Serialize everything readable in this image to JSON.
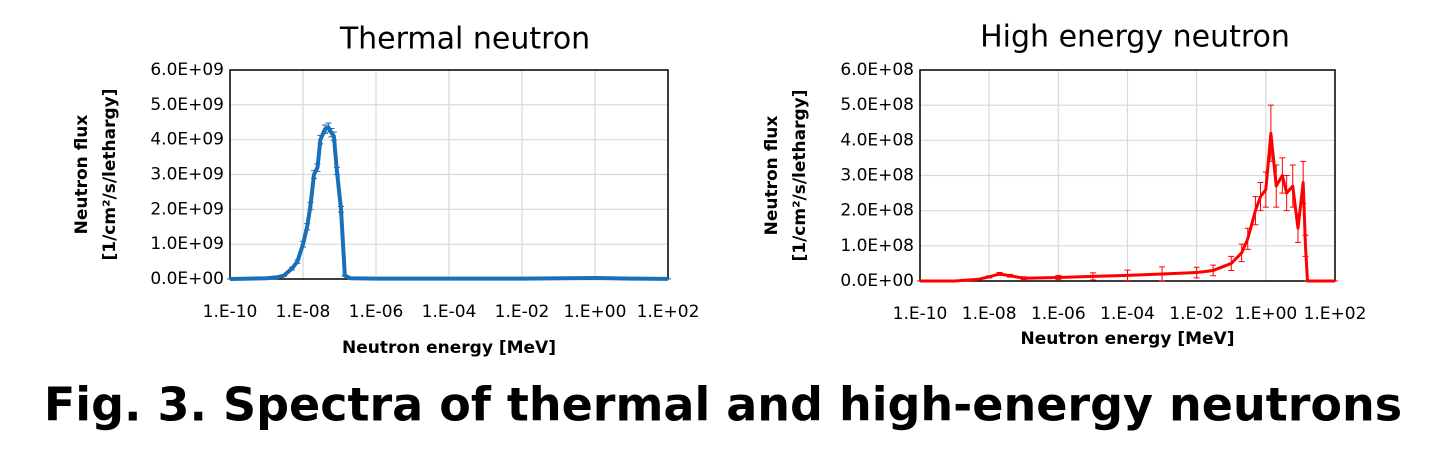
{
  "chart_data": [
    {
      "type": "line",
      "title": "Thermal neutron",
      "xlabel": "Neutron energy [MeV]",
      "ylabel": [
        "Neutron flux",
        "[1/cm²/s/lethargy]"
      ],
      "xscale": "log",
      "grid": true,
      "xlim": [
        1e-10,
        100
      ],
      "xticks": [
        {
          "value": 1e-10,
          "label": "1.E-10"
        },
        {
          "value": 1e-08,
          "label": "1.E-08"
        },
        {
          "value": 1e-06,
          "label": "1.E-06"
        },
        {
          "value": 0.0001,
          "label": "1.E-04"
        },
        {
          "value": 0.01,
          "label": "1.E-02"
        },
        {
          "value": 1,
          "label": "1.E+00"
        },
        {
          "value": 100,
          "label": "1.E+02"
        }
      ],
      "ylim": [
        0,
        6000000000
      ],
      "yticks": [
        {
          "value": 0,
          "label": "0.0E+00"
        },
        {
          "value": 1000000000,
          "label": "1.0E+09"
        },
        {
          "value": 2000000000,
          "label": "2.0E+09"
        },
        {
          "value": 3000000000,
          "label": "3.0E+09"
        },
        {
          "value": 4000000000,
          "label": "4.0E+09"
        },
        {
          "value": 5000000000,
          "label": "5.0E+09"
        },
        {
          "value": 6000000000,
          "label": "6.0E+09"
        }
      ],
      "x": [
        1e-10,
        1e-09,
        2e-09,
        3e-09,
        5e-09,
        7e-09,
        1e-08,
        1.3e-08,
        1.6e-08,
        2e-08,
        2.5e-08,
        3e-08,
        4e-08,
        5e-08,
        6e-08,
        7e-08,
        8.5e-08,
        1.1e-07,
        1.4e-07,
        2e-07,
        1e-06,
        0.0001,
        0.01,
        1,
        10,
        100
      ],
      "series": [
        {
          "color": "#1a6fb9",
          "values": [
            0,
            20000000,
            50000000,
            100000000,
            300000000,
            500000000,
            1000000000,
            1500000000,
            2100000000,
            3000000000,
            3200000000,
            4000000000,
            4300000000,
            4350000000,
            4200000000,
            4100000000,
            3100000000,
            2000000000,
            100000000,
            20000000,
            10000000,
            10000000,
            10000000,
            30000000,
            10000000,
            5000000
          ],
          "errors": [
            0,
            5000000,
            10000000,
            20000000,
            40000000,
            50000000,
            80000000,
            90000000,
            100000000,
            110000000,
            110000000,
            120000000,
            120000000,
            130000000,
            120000000,
            120000000,
            100000000,
            80000000,
            20000000,
            5000000,
            5000000,
            5000000,
            5000000,
            15000000,
            5000000,
            3000000
          ]
        }
      ]
    },
    {
      "type": "line",
      "title": "High energy neutron",
      "xlabel": "Neutron energy [MeV]",
      "ylabel": [
        "Neutron flux",
        "[1/cm²/s/lethargy]"
      ],
      "xscale": "log",
      "grid": true,
      "xlim": [
        1e-10,
        100
      ],
      "xticks": [
        {
          "value": 1e-10,
          "label": "1.E-10"
        },
        {
          "value": 1e-08,
          "label": "1.E-08"
        },
        {
          "value": 1e-06,
          "label": "1.E-06"
        },
        {
          "value": 0.0001,
          "label": "1.E-04"
        },
        {
          "value": 0.01,
          "label": "1.E-02"
        },
        {
          "value": 1,
          "label": "1.E+00"
        },
        {
          "value": 100,
          "label": "1.E+02"
        }
      ],
      "ylim": [
        0,
        600000000
      ],
      "yticks": [
        {
          "value": 0,
          "label": "0.0E+00"
        },
        {
          "value": 100000000,
          "label": "1.0E+08"
        },
        {
          "value": 200000000,
          "label": "2.0E+08"
        },
        {
          "value": 300000000,
          "label": "3.0E+08"
        },
        {
          "value": 400000000,
          "label": "4.0E+08"
        },
        {
          "value": 500000000,
          "label": "5.0E+08"
        },
        {
          "value": 600000000,
          "label": "6.0E+08"
        }
      ],
      "x": [
        1e-10,
        1e-09,
        5e-09,
        1e-08,
        2e-08,
        4e-08,
        1e-07,
        1e-06,
        1e-05,
        0.0001,
        0.001,
        0.01,
        0.03,
        0.1,
        0.2,
        0.3,
        0.5,
        0.7,
        1,
        1.4,
        2,
        3,
        4,
        6,
        8.5,
        12,
        14,
        16,
        100
      ],
      "series": [
        {
          "color": "#ff0000",
          "values": [
            0,
            0,
            5000000,
            12000000,
            20000000,
            15000000,
            8000000,
            10000000,
            13000000,
            16000000,
            20000000,
            24000000,
            30000000,
            50000000,
            80000000,
            120000000,
            200000000,
            240000000,
            260000000,
            420000000,
            270000000,
            300000000,
            250000000,
            270000000,
            150000000,
            280000000,
            100000000,
            0,
            0
          ],
          "errors": [
            0,
            0,
            2000000,
            3000000,
            4000000,
            4000000,
            4000000,
            6000000,
            10000000,
            15000000,
            20000000,
            15000000,
            15000000,
            20000000,
            25000000,
            30000000,
            40000000,
            40000000,
            50000000,
            80000000,
            60000000,
            50000000,
            50000000,
            60000000,
            40000000,
            60000000,
            30000000,
            0,
            0
          ]
        }
      ]
    }
  ],
  "caption": "Fig. 3. Spectra of thermal and high-energy neutrons"
}
